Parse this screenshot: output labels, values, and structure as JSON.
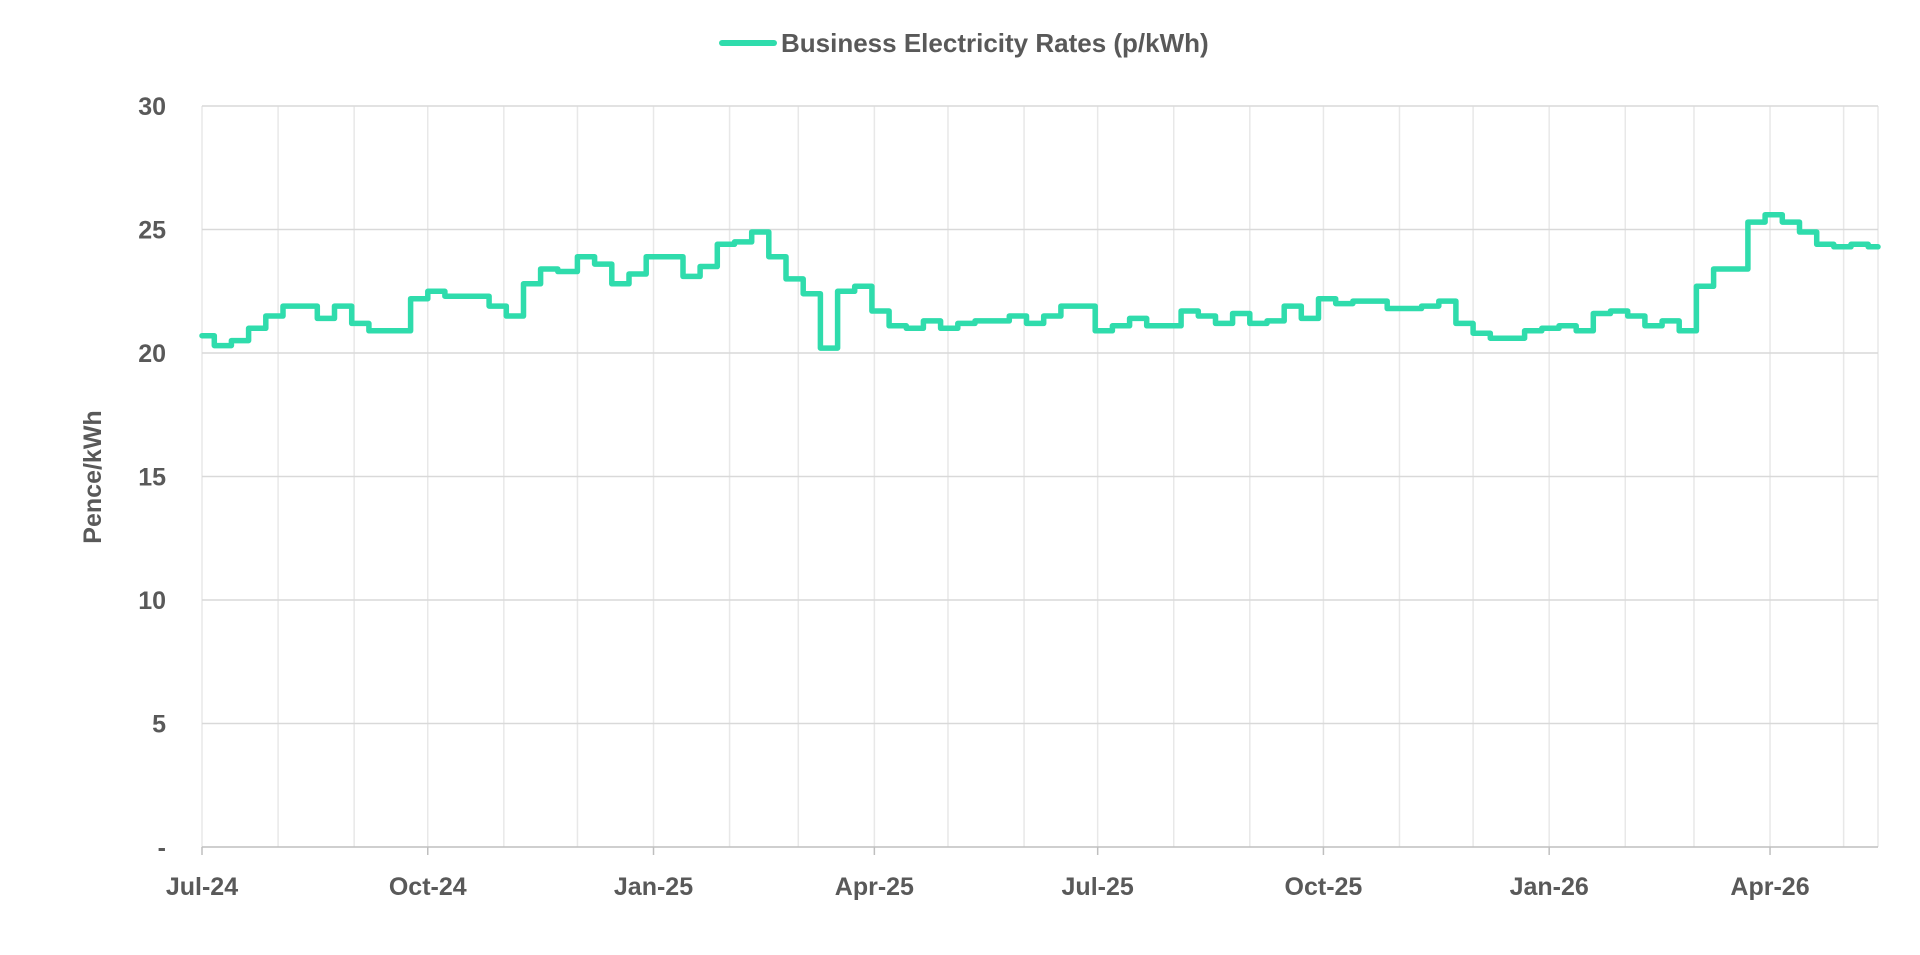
{
  "chart_data": {
    "type": "line",
    "ylabel": "Pence/kWh",
    "ylim": [
      0,
      30
    ],
    "y_ticks": [
      {
        "value": 30,
        "label": "30"
      },
      {
        "value": 25,
        "label": "25"
      },
      {
        "value": 20,
        "label": "20"
      },
      {
        "value": 15,
        "label": "15"
      },
      {
        "value": 10,
        "label": "10"
      },
      {
        "value": 5,
        "label": "5"
      },
      {
        "value": 0,
        "label": "-"
      }
    ],
    "x_ticks": [
      "Jul-24",
      "Oct-24",
      "Jan-25",
      "Apr-25",
      "Jul-25",
      "Oct-25",
      "Jan-26",
      "Apr-26"
    ],
    "x_range": [
      "2024-07-01",
      "2026-05-15"
    ],
    "grid": true,
    "legend_position": "top-center",
    "step": true,
    "series": [
      {
        "name": "Business Electricity Rates (p/kWh)",
        "color": "#2fdcac",
        "points": [
          [
            "2024-07-01",
            20.7
          ],
          [
            "2024-07-06",
            20.3
          ],
          [
            "2024-07-13",
            20.5
          ],
          [
            "2024-07-20",
            21.0
          ],
          [
            "2024-07-27",
            21.5
          ],
          [
            "2024-08-03",
            21.9
          ],
          [
            "2024-08-17",
            21.4
          ],
          [
            "2024-08-24",
            21.9
          ],
          [
            "2024-08-31",
            21.2
          ],
          [
            "2024-09-07",
            20.9
          ],
          [
            "2024-09-24",
            22.2
          ],
          [
            "2024-10-01",
            22.5
          ],
          [
            "2024-10-08",
            22.3
          ],
          [
            "2024-10-26",
            21.9
          ],
          [
            "2024-11-02",
            21.5
          ],
          [
            "2024-11-09",
            22.8
          ],
          [
            "2024-11-16",
            23.4
          ],
          [
            "2024-11-23",
            23.3
          ],
          [
            "2024-12-01",
            23.9
          ],
          [
            "2024-12-08",
            23.6
          ],
          [
            "2024-12-15",
            22.8
          ],
          [
            "2024-12-22",
            23.2
          ],
          [
            "2024-12-29",
            23.9
          ],
          [
            "2025-01-13",
            23.1
          ],
          [
            "2025-01-20",
            23.5
          ],
          [
            "2025-01-27",
            24.4
          ],
          [
            "2025-02-03",
            24.5
          ],
          [
            "2025-02-10",
            24.9
          ],
          [
            "2025-02-17",
            23.9
          ],
          [
            "2025-02-24",
            23.0
          ],
          [
            "2025-03-03",
            22.4
          ],
          [
            "2025-03-10",
            20.2
          ],
          [
            "2025-03-17",
            22.5
          ],
          [
            "2025-03-24",
            22.7
          ],
          [
            "2025-03-31",
            21.7
          ],
          [
            "2025-04-07",
            21.1
          ],
          [
            "2025-04-14",
            21.0
          ],
          [
            "2025-04-21",
            21.3
          ],
          [
            "2025-04-28",
            21.0
          ],
          [
            "2025-05-05",
            21.2
          ],
          [
            "2025-05-12",
            21.3
          ],
          [
            "2025-05-26",
            21.5
          ],
          [
            "2025-06-02",
            21.2
          ],
          [
            "2025-06-09",
            21.5
          ],
          [
            "2025-06-16",
            21.9
          ],
          [
            "2025-06-30",
            20.9
          ],
          [
            "2025-07-07",
            21.1
          ],
          [
            "2025-07-14",
            21.4
          ],
          [
            "2025-07-21",
            21.1
          ],
          [
            "2025-07-28",
            21.1
          ],
          [
            "2025-08-04",
            21.7
          ],
          [
            "2025-08-11",
            21.5
          ],
          [
            "2025-08-18",
            21.2
          ],
          [
            "2025-08-25",
            21.6
          ],
          [
            "2025-09-01",
            21.2
          ],
          [
            "2025-09-08",
            21.3
          ],
          [
            "2025-09-15",
            21.9
          ],
          [
            "2025-09-22",
            21.4
          ],
          [
            "2025-09-29",
            22.2
          ],
          [
            "2025-10-06",
            22.0
          ],
          [
            "2025-10-13",
            22.1
          ],
          [
            "2025-10-27",
            21.8
          ],
          [
            "2025-11-10",
            21.9
          ],
          [
            "2025-11-17",
            22.1
          ],
          [
            "2025-11-24",
            21.2
          ],
          [
            "2025-12-01",
            20.8
          ],
          [
            "2025-12-08",
            20.6
          ],
          [
            "2025-12-22",
            20.9
          ],
          [
            "2025-12-29",
            21.0
          ],
          [
            "2026-01-05",
            21.1
          ],
          [
            "2026-01-12",
            20.9
          ],
          [
            "2026-01-19",
            21.6
          ],
          [
            "2026-01-26",
            21.7
          ],
          [
            "2026-02-02",
            21.5
          ],
          [
            "2026-02-09",
            21.1
          ],
          [
            "2026-02-16",
            21.3
          ],
          [
            "2026-02-23",
            20.9
          ],
          [
            "2026-03-02",
            22.7
          ],
          [
            "2026-03-09",
            23.4
          ],
          [
            "2026-03-16",
            23.4
          ],
          [
            "2026-03-23",
            25.3
          ],
          [
            "2026-03-30",
            25.6
          ],
          [
            "2026-04-06",
            25.3
          ],
          [
            "2026-04-13",
            24.9
          ],
          [
            "2026-04-20",
            24.4
          ],
          [
            "2026-04-27",
            24.3
          ],
          [
            "2026-05-04",
            24.4
          ],
          [
            "2026-05-11",
            24.3
          ],
          [
            "2026-05-15",
            24.3
          ]
        ]
      }
    ]
  }
}
